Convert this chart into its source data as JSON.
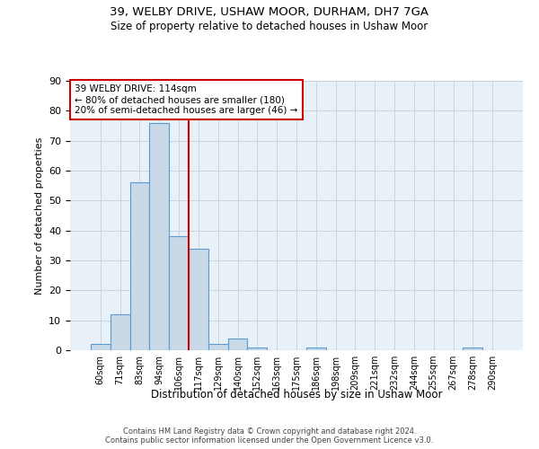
{
  "title_line1": "39, WELBY DRIVE, USHAW MOOR, DURHAM, DH7 7GA",
  "title_line2": "Size of property relative to detached houses in Ushaw Moor",
  "xlabel": "Distribution of detached houses by size in Ushaw Moor",
  "ylabel": "Number of detached properties",
  "categories": [
    "60sqm",
    "71sqm",
    "83sqm",
    "94sqm",
    "106sqm",
    "117sqm",
    "129sqm",
    "140sqm",
    "152sqm",
    "163sqm",
    "175sqm",
    "186sqm",
    "198sqm",
    "209sqm",
    "221sqm",
    "232sqm",
    "244sqm",
    "255sqm",
    "267sqm",
    "278sqm",
    "290sqm"
  ],
  "values": [
    2,
    12,
    56,
    76,
    38,
    34,
    2,
    4,
    1,
    0,
    0,
    1,
    0,
    0,
    0,
    0,
    0,
    0,
    0,
    1,
    0
  ],
  "bar_color": "#c9d9e8",
  "bar_edge_color": "#5b9bd5",
  "vline_x": 4.5,
  "vline_color": "#cc0000",
  "annotation_title": "39 WELBY DRIVE: 114sqm",
  "annotation_line1": "← 80% of detached houses are smaller (180)",
  "annotation_line2": "20% of semi-detached houses are larger (46) →",
  "annotation_box_color": "#ffffff",
  "annotation_box_edge": "#cc0000",
  "ylim": [
    0,
    90
  ],
  "yticks": [
    0,
    10,
    20,
    30,
    40,
    50,
    60,
    70,
    80,
    90
  ],
  "footer_line1": "Contains HM Land Registry data © Crown copyright and database right 2024.",
  "footer_line2": "Contains public sector information licensed under the Open Government Licence v3.0.",
  "bg_color": "#ffffff",
  "plot_bg_color": "#e8f0f8",
  "grid_color": "#c8d4e0"
}
